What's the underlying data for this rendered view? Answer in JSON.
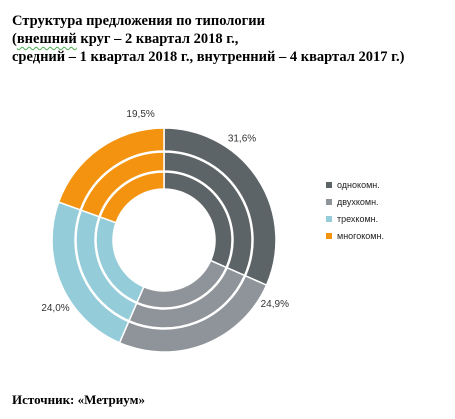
{
  "title": {
    "line1": "Структура предложения по типологии",
    "line2_prefix": "(",
    "line2_word": "внешний",
    "line2_rest": " круг – 2 квартал 2018 г.,",
    "line3": "средний – 1 квартал 2018 г., внутренний – 4 квартал 2017 г.)"
  },
  "source": "Источник: «Метриум»",
  "colors": {
    "однокомн.": "#5d6467",
    "двухкомн.": "#8e9499",
    "трехкомн.": "#94ccd9",
    "многокомн.": "#f3930f"
  },
  "chart_data": {
    "type": "donut",
    "categories": [
      "однокомн.",
      "двухкомн.",
      "трехкомн.",
      "многокомн."
    ],
    "series": [
      {
        "ring": "outer",
        "values": [
          31.6,
          24.9,
          24.0,
          19.5
        ]
      },
      {
        "ring": "middle",
        "values": [
          31.6,
          24.9,
          24.0,
          19.5
        ]
      },
      {
        "ring": "inner",
        "values": [
          31.6,
          24.9,
          24.0,
          19.5
        ]
      }
    ],
    "data_labels": [
      "31,6%",
      "24,9%",
      "24,0%",
      "19,5%"
    ],
    "legend": [
      "однокомн.",
      "двухкомн.",
      "трехкомн.",
      "многокомн."
    ],
    "legend_position": "right"
  }
}
